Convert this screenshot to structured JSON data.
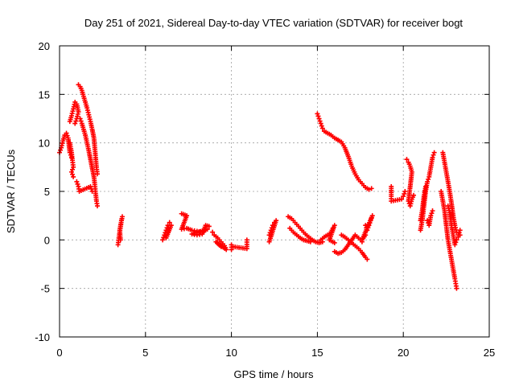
{
  "chart_data": {
    "type": "scatter",
    "title": "Day 251 of 2021, Sidereal Day-to-day VTEC variation (SDTVAR) for receiver bogt",
    "xlabel": "GPS time / hours",
    "ylabel": "SDTVAR / TECUs",
    "xlim": [
      0,
      25
    ],
    "ylim": [
      -10,
      20
    ],
    "x_ticks": [
      0,
      5,
      10,
      15,
      20,
      25
    ],
    "y_ticks": [
      -10,
      -5,
      0,
      5,
      10,
      15,
      20
    ],
    "x_tick_labels": [
      "0",
      "5",
      "10",
      "15",
      "20",
      "25"
    ],
    "y_tick_labels": [
      "-10",
      "-5",
      "0",
      "5",
      "10",
      "15",
      "20"
    ],
    "grid": true,
    "marker": "+",
    "marker_color": "#ff0000",
    "segments": [
      {
        "name": "s1",
        "points": [
          [
            0.0,
            9.0
          ],
          [
            0.1,
            9.5
          ],
          [
            0.2,
            10.2
          ],
          [
            0.3,
            10.8
          ],
          [
            0.4,
            11.0
          ],
          [
            0.5,
            10.5
          ],
          [
            0.6,
            9.0
          ],
          [
            0.7,
            8.5
          ]
        ]
      },
      {
        "name": "s2",
        "points": [
          [
            0.6,
            12.2
          ],
          [
            0.7,
            12.8
          ],
          [
            0.8,
            13.5
          ],
          [
            0.9,
            14.2
          ],
          [
            1.0,
            14.0
          ],
          [
            1.1,
            13.2
          ],
          [
            1.0,
            12.5
          ],
          [
            0.9,
            12.0
          ]
        ]
      },
      {
        "name": "s3",
        "points": [
          [
            0.6,
            10.0
          ],
          [
            0.7,
            9.0
          ],
          [
            0.75,
            8.2
          ],
          [
            0.8,
            7.5
          ],
          [
            0.7,
            7.0
          ],
          [
            0.8,
            6.5
          ]
        ]
      },
      {
        "name": "s4",
        "points": [
          [
            1.1,
            16.0
          ],
          [
            1.2,
            15.8
          ],
          [
            1.3,
            15.4
          ],
          [
            1.4,
            14.8
          ],
          [
            1.5,
            14.2
          ],
          [
            1.6,
            13.6
          ],
          [
            1.7,
            12.9
          ],
          [
            1.8,
            12.2
          ],
          [
            1.9,
            11.4
          ],
          [
            2.0,
            10.5
          ],
          [
            2.05,
            9.5
          ],
          [
            2.1,
            8.5
          ],
          [
            2.15,
            7.5
          ],
          [
            2.2,
            6.8
          ]
        ]
      },
      {
        "name": "s5",
        "points": [
          [
            1.2,
            12.5
          ],
          [
            1.3,
            12.0
          ],
          [
            1.4,
            11.4
          ],
          [
            1.5,
            10.8
          ],
          [
            1.6,
            10.0
          ],
          [
            1.7,
            9.2
          ],
          [
            1.8,
            8.3
          ],
          [
            1.9,
            7.4
          ],
          [
            2.0,
            6.5
          ],
          [
            2.05,
            5.7
          ],
          [
            2.1,
            4.8
          ],
          [
            2.15,
            4.0
          ],
          [
            2.2,
            3.5
          ]
        ]
      },
      {
        "name": "s6",
        "points": [
          [
            1.0,
            6.0
          ],
          [
            1.1,
            5.5
          ],
          [
            1.15,
            5.0
          ],
          [
            1.8,
            5.5
          ],
          [
            1.9,
            5.0
          ]
        ]
      },
      {
        "name": "s7",
        "points": [
          [
            3.4,
            -0.5
          ],
          [
            3.45,
            0.2
          ],
          [
            3.5,
            0.8
          ],
          [
            3.55,
            1.4
          ],
          [
            3.6,
            2.0
          ],
          [
            3.65,
            2.4
          ],
          [
            3.5,
            1.0
          ],
          [
            3.55,
            0.0
          ]
        ]
      },
      {
        "name": "s8",
        "points": [
          [
            6.0,
            0.0
          ],
          [
            6.1,
            0.5
          ],
          [
            6.2,
            1.0
          ],
          [
            6.3,
            1.5
          ],
          [
            6.4,
            1.8
          ],
          [
            6.5,
            1.5
          ],
          [
            6.2,
            0.2
          ],
          [
            6.35,
            1.2
          ]
        ]
      },
      {
        "name": "s9",
        "points": [
          [
            7.1,
            2.7
          ],
          [
            7.4,
            2.5
          ],
          [
            7.1,
            1.1
          ],
          [
            7.4,
            1.2
          ],
          [
            7.7,
            1.0
          ],
          [
            8.0,
            0.9
          ],
          [
            8.3,
            0.8
          ],
          [
            8.6,
            1.1
          ],
          [
            7.7,
            0.6
          ],
          [
            8.0,
            0.5
          ],
          [
            8.3,
            0.6
          ],
          [
            8.5,
            1.5
          ],
          [
            8.7,
            1.4
          ]
        ]
      },
      {
        "name": "s10",
        "points": [
          [
            8.9,
            0.8
          ],
          [
            9.0,
            0.5
          ],
          [
            9.2,
            0.2
          ],
          [
            9.4,
            -0.2
          ],
          [
            9.6,
            -0.6
          ],
          [
            9.7,
            -1.0
          ],
          [
            9.1,
            -0.2
          ],
          [
            9.4,
            -0.7
          ]
        ]
      },
      {
        "name": "s11",
        "points": [
          [
            10.0,
            -1.0
          ],
          [
            10.0,
            -0.5
          ],
          [
            10.1,
            -0.7
          ],
          [
            10.9,
            -0.9
          ],
          [
            10.9,
            0.0
          ]
        ]
      },
      {
        "name": "s12",
        "points": [
          [
            12.2,
            0.5
          ],
          [
            12.3,
            1.0
          ],
          [
            12.4,
            1.5
          ],
          [
            12.5,
            1.8
          ],
          [
            12.6,
            2.0
          ],
          [
            12.2,
            -0.2
          ]
        ]
      },
      {
        "name": "s13",
        "points": [
          [
            13.3,
            2.4
          ],
          [
            13.5,
            2.2
          ],
          [
            13.7,
            1.8
          ],
          [
            13.9,
            1.4
          ],
          [
            14.1,
            1.0
          ],
          [
            14.3,
            0.6
          ],
          [
            14.5,
            0.3
          ],
          [
            14.7,
            0.0
          ],
          [
            14.9,
            -0.2
          ],
          [
            15.1,
            -0.3
          ],
          [
            15.3,
            -0.2
          ]
        ]
      },
      {
        "name": "s14",
        "points": [
          [
            13.4,
            1.2
          ],
          [
            13.6,
            0.8
          ],
          [
            13.8,
            0.5
          ],
          [
            14.0,
            0.2
          ],
          [
            14.2,
            0.0
          ],
          [
            14.4,
            -0.1
          ],
          [
            14.6,
            -0.2
          ]
        ]
      },
      {
        "name": "s15",
        "points": [
          [
            15.0,
            13.0
          ],
          [
            15.1,
            12.5
          ],
          [
            15.2,
            12.0
          ],
          [
            15.3,
            11.5
          ],
          [
            15.4,
            11.2
          ],
          [
            15.6,
            11.0
          ],
          [
            15.8,
            10.8
          ],
          [
            16.0,
            10.5
          ],
          [
            16.2,
            10.3
          ],
          [
            16.4,
            10.1
          ],
          [
            16.6,
            9.5
          ],
          [
            16.8,
            8.6
          ],
          [
            17.0,
            7.6
          ],
          [
            17.2,
            6.8
          ],
          [
            17.4,
            6.2
          ],
          [
            17.6,
            5.8
          ],
          [
            17.8,
            5.4
          ],
          [
            18.0,
            5.2
          ],
          [
            18.15,
            5.3
          ]
        ]
      },
      {
        "name": "s16",
        "points": [
          [
            15.2,
            0.0
          ],
          [
            15.4,
            0.3
          ],
          [
            15.6,
            0.5
          ],
          [
            15.8,
            0.8
          ],
          [
            15.9,
            1.2
          ],
          [
            16.0,
            1.5
          ],
          [
            15.7,
            0.0
          ],
          [
            16.0,
            -0.3
          ]
        ]
      },
      {
        "name": "s17",
        "points": [
          [
            16.0,
            -1.2
          ],
          [
            16.2,
            -1.4
          ],
          [
            16.4,
            -1.3
          ],
          [
            16.6,
            -1.0
          ],
          [
            16.8,
            -0.5
          ],
          [
            17.0,
            0.0
          ],
          [
            17.2,
            0.5
          ],
          [
            17.4,
            0.2
          ],
          [
            17.6,
            -0.2
          ]
        ]
      },
      {
        "name": "s18",
        "points": [
          [
            16.4,
            0.5
          ],
          [
            16.6,
            0.3
          ],
          [
            16.8,
            0.0
          ],
          [
            17.0,
            -0.3
          ],
          [
            17.2,
            -0.6
          ],
          [
            17.4,
            -0.9
          ],
          [
            17.6,
            -1.3
          ],
          [
            17.8,
            -1.8
          ],
          [
            17.9,
            -2.0
          ]
        ]
      },
      {
        "name": "s19",
        "points": [
          [
            17.8,
            1.5
          ],
          [
            17.9,
            1.0
          ],
          [
            18.0,
            1.5
          ],
          [
            18.1,
            2.0
          ],
          [
            18.2,
            2.5
          ],
          [
            17.6,
            0.0
          ],
          [
            17.8,
            0.5
          ]
        ]
      },
      {
        "name": "s20",
        "points": [
          [
            19.3,
            5.5
          ],
          [
            19.3,
            4.5
          ],
          [
            19.3,
            4.0
          ],
          [
            19.9,
            4.2
          ],
          [
            20.0,
            4.5
          ],
          [
            20.1,
            5.0
          ]
        ]
      },
      {
        "name": "s21",
        "points": [
          [
            20.2,
            8.3
          ],
          [
            20.3,
            8.0
          ],
          [
            20.4,
            7.6
          ],
          [
            20.5,
            7.0
          ],
          [
            20.3,
            4.0
          ],
          [
            20.4,
            3.5
          ],
          [
            20.5,
            4.2
          ],
          [
            20.6,
            4.6
          ]
        ]
      },
      {
        "name": "s22",
        "points": [
          [
            21.0,
            1.0
          ],
          [
            21.1,
            2.0
          ],
          [
            21.2,
            3.5
          ],
          [
            21.3,
            5.0
          ],
          [
            21.4,
            6.0
          ],
          [
            21.5,
            6.5
          ],
          [
            21.6,
            7.5
          ],
          [
            21.7,
            8.5
          ],
          [
            21.8,
            9.0
          ]
        ]
      },
      {
        "name": "s23",
        "points": [
          [
            21.0,
            2.0
          ],
          [
            21.1,
            3.0
          ],
          [
            21.2,
            4.5
          ],
          [
            21.3,
            5.5
          ],
          [
            21.4,
            2.0
          ],
          [
            21.5,
            1.5
          ],
          [
            21.6,
            2.5
          ],
          [
            21.7,
            3.0
          ]
        ]
      },
      {
        "name": "s24",
        "points": [
          [
            22.3,
            9.0
          ],
          [
            22.4,
            8.0
          ],
          [
            22.5,
            7.0
          ],
          [
            22.6,
            6.0
          ],
          [
            22.7,
            5.0
          ],
          [
            22.8,
            3.8
          ],
          [
            22.9,
            2.5
          ],
          [
            23.0,
            1.5
          ],
          [
            23.1,
            0.8
          ],
          [
            23.2,
            0.5
          ],
          [
            23.3,
            1.0
          ]
        ]
      },
      {
        "name": "s25",
        "points": [
          [
            22.2,
            5.0
          ],
          [
            22.3,
            4.0
          ],
          [
            22.4,
            3.0
          ],
          [
            22.5,
            1.5
          ],
          [
            22.6,
            0.0
          ],
          [
            22.7,
            -1.0
          ],
          [
            22.8,
            -2.0
          ],
          [
            22.9,
            -3.0
          ],
          [
            23.0,
            -4.0
          ],
          [
            23.05,
            -4.5
          ],
          [
            23.1,
            -5.0
          ]
        ]
      },
      {
        "name": "s26",
        "points": [
          [
            22.6,
            3.5
          ],
          [
            22.7,
            2.8
          ],
          [
            22.8,
            1.5
          ],
          [
            22.9,
            0.5
          ],
          [
            23.0,
            -0.5
          ],
          [
            23.1,
            0.0
          ],
          [
            23.2,
            0.3
          ],
          [
            23.3,
            0.5
          ]
        ]
      }
    ]
  }
}
